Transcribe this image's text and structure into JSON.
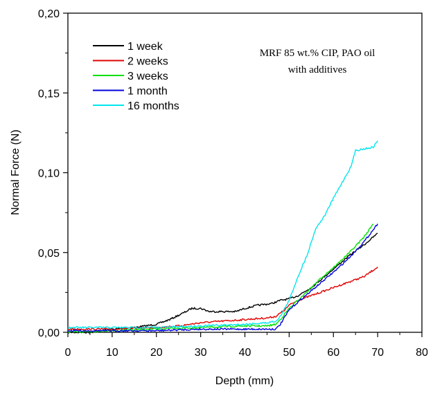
{
  "chart_data": {
    "type": "line",
    "title": "",
    "annotation": [
      "MRF 85 wt.% CIP, PAO oil",
      "with additives"
    ],
    "xlabel": "Depth (mm)",
    "ylabel": "Normal Force (N)",
    "xlim": [
      0,
      80
    ],
    "ylim": [
      0,
      0.2
    ],
    "x_ticks": [
      0,
      10,
      20,
      30,
      40,
      50,
      60,
      70,
      80
    ],
    "x_tick_labels": [
      "0",
      "10",
      "20",
      "30",
      "40",
      "50",
      "60",
      "70",
      "80"
    ],
    "y_ticks": [
      0,
      0.05,
      0.1,
      0.15,
      0.2
    ],
    "y_tick_labels": [
      "0,00",
      "0,05",
      "0,10",
      "0,15",
      "0,20"
    ],
    "grid": false,
    "legend_position": "top-left",
    "series": [
      {
        "name": "1 week",
        "color": "#000000",
        "points": [
          [
            0,
            0.0
          ],
          [
            5,
            0.0
          ],
          [
            10,
            0.002
          ],
          [
            15,
            0.003
          ],
          [
            20,
            0.005
          ],
          [
            23,
            0.008
          ],
          [
            26,
            0.012
          ],
          [
            28,
            0.015
          ],
          [
            30,
            0.015
          ],
          [
            32,
            0.013
          ],
          [
            35,
            0.013
          ],
          [
            38,
            0.013
          ],
          [
            40,
            0.015
          ],
          [
            43,
            0.017
          ],
          [
            46,
            0.018
          ],
          [
            48,
            0.02
          ],
          [
            50,
            0.021
          ],
          [
            52,
            0.023
          ],
          [
            55,
            0.028
          ],
          [
            58,
            0.035
          ],
          [
            61,
            0.042
          ],
          [
            64,
            0.049
          ],
          [
            67,
            0.055
          ],
          [
            70,
            0.062
          ]
        ]
      },
      {
        "name": "2 weeks",
        "color": "#e00000",
        "points": [
          [
            0,
            0.002
          ],
          [
            10,
            0.002
          ],
          [
            20,
            0.003
          ],
          [
            25,
            0.004
          ],
          [
            30,
            0.006
          ],
          [
            35,
            0.007
          ],
          [
            40,
            0.008
          ],
          [
            45,
            0.009
          ],
          [
            47,
            0.01
          ],
          [
            49,
            0.014
          ],
          [
            50,
            0.017
          ],
          [
            52,
            0.02
          ],
          [
            55,
            0.023
          ],
          [
            58,
            0.026
          ],
          [
            61,
            0.029
          ],
          [
            64,
            0.032
          ],
          [
            67,
            0.035
          ],
          [
            70,
            0.041
          ]
        ]
      },
      {
        "name": "3 weeks",
        "color": "#00e000",
        "points": [
          [
            0,
            0.0
          ],
          [
            10,
            0.001
          ],
          [
            20,
            0.002
          ],
          [
            30,
            0.003
          ],
          [
            40,
            0.004
          ],
          [
            45,
            0.004
          ],
          [
            47,
            0.005
          ],
          [
            48,
            0.008
          ],
          [
            50,
            0.015
          ],
          [
            52,
            0.02
          ],
          [
            55,
            0.028
          ],
          [
            58,
            0.036
          ],
          [
            61,
            0.043
          ],
          [
            64,
            0.051
          ],
          [
            67,
            0.06
          ],
          [
            69,
            0.068
          ]
        ]
      },
      {
        "name": "1 month",
        "color": "#0000e0",
        "points": [
          [
            0,
            0.001
          ],
          [
            10,
            0.001
          ],
          [
            20,
            0.001
          ],
          [
            30,
            0.002
          ],
          [
            40,
            0.002
          ],
          [
            45,
            0.002
          ],
          [
            47,
            0.002
          ],
          [
            48,
            0.005
          ],
          [
            50,
            0.014
          ],
          [
            52,
            0.019
          ],
          [
            55,
            0.026
          ],
          [
            58,
            0.033
          ],
          [
            61,
            0.04
          ],
          [
            64,
            0.048
          ],
          [
            67,
            0.057
          ],
          [
            70,
            0.068
          ]
        ]
      },
      {
        "name": "16 months",
        "color": "#00e5ee",
        "points": [
          [
            0,
            0.003
          ],
          [
            10,
            0.003
          ],
          [
            20,
            0.003
          ],
          [
            30,
            0.004
          ],
          [
            40,
            0.005
          ],
          [
            45,
            0.006
          ],
          [
            47,
            0.007
          ],
          [
            48,
            0.01
          ],
          [
            50,
            0.02
          ],
          [
            52,
            0.035
          ],
          [
            54,
            0.048
          ],
          [
            56,
            0.065
          ],
          [
            58,
            0.073
          ],
          [
            60,
            0.084
          ],
          [
            62,
            0.094
          ],
          [
            64,
            0.104
          ],
          [
            65,
            0.114
          ],
          [
            67,
            0.115
          ],
          [
            69,
            0.116
          ],
          [
            70,
            0.12
          ]
        ]
      }
    ]
  }
}
